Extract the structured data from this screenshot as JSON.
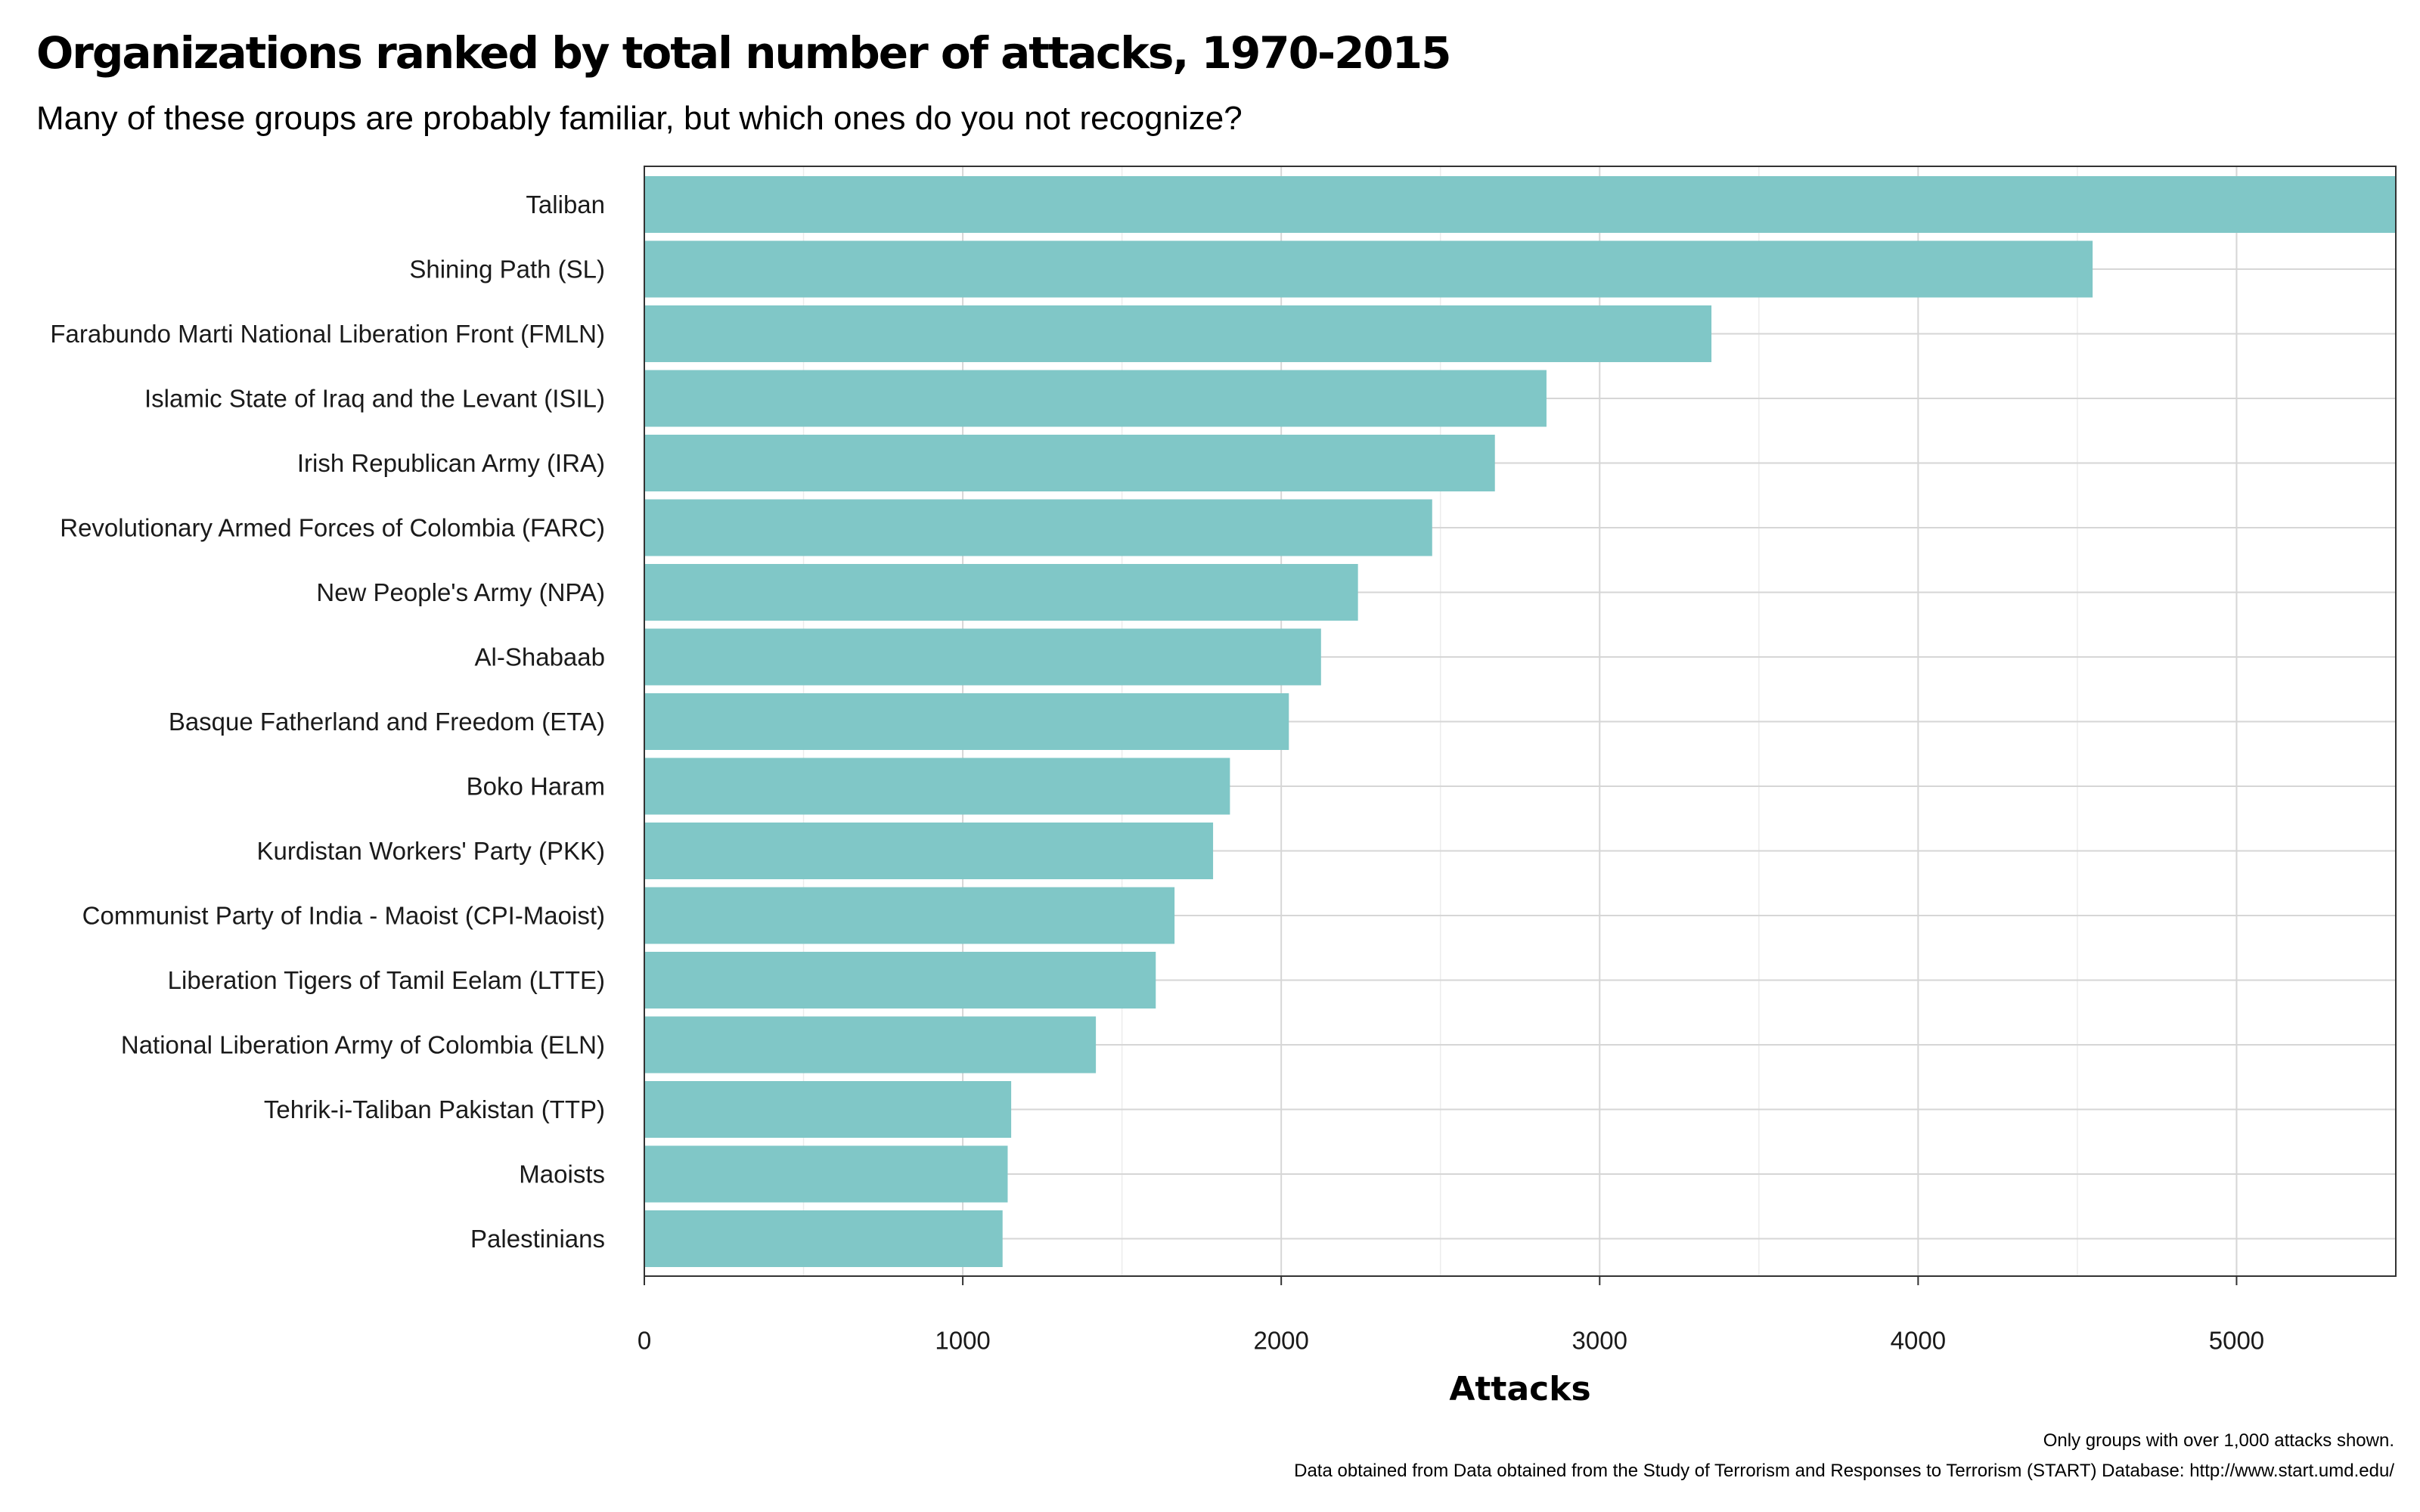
{
  "colors": {
    "bar": "#80c7c7",
    "grid_major": "#d6d6d6",
    "grid_minor": "#ececec",
    "panel_border": "#333333",
    "text": "#1a1a1a"
  },
  "chart_data": {
    "type": "bar",
    "orientation": "horizontal",
    "title": "Organizations ranked by total number of attacks, 1970-2015",
    "subtitle": "Many of these groups are probably familiar, but which ones do you not recognize?",
    "xlabel": "Attacks",
    "ylabel": "",
    "xlim": [
      0,
      5500
    ],
    "xticks": [
      0,
      1000,
      2000,
      3000,
      4000,
      5000
    ],
    "grid": true,
    "categories": [
      "Taliban",
      "Shining Path (SL)",
      "Farabundo Marti National Liberation Front (FMLN)",
      "Islamic State of Iraq and the Levant (ISIL)",
      "Irish Republican Army (IRA)",
      "Revolutionary Armed Forces of Colombia (FARC)",
      "New People's Army (NPA)",
      "Al-Shabaab",
      "Basque Fatherland and Freedom (ETA)",
      "Boko Haram",
      "Kurdistan Workers' Party (PKK)",
      "Communist Party of India - Maoist (CPI-Maoist)",
      "Liberation Tigers of Tamil Eelam (LTTE)",
      "National Liberation Army of Colombia (ELN)",
      "Tehrik-i-Taliban Pakistan (TTP)",
      "Maoists",
      "Palestinians"
    ],
    "values": [
      5502,
      4548,
      3351,
      2833,
      2671,
      2474,
      2241,
      2125,
      2024,
      1839,
      1786,
      1665,
      1606,
      1418,
      1152,
      1141,
      1125
    ],
    "caption_lines": [
      "Only groups with over 1,000 attacks shown.",
      "Data obtained from Data obtained from the Study of Terrorism and Responses to Terrorism (START) Database: http://www.start.umd.edu/"
    ]
  }
}
